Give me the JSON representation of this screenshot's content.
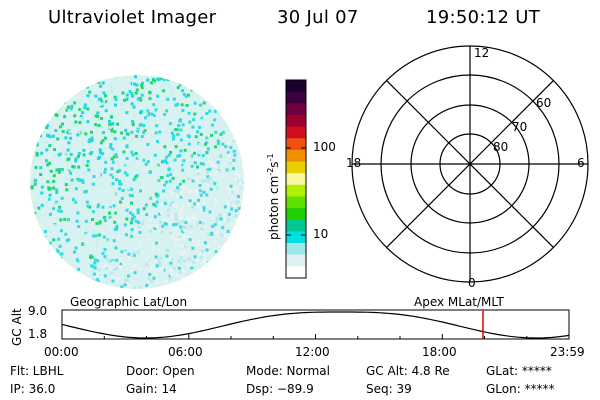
{
  "header": {
    "title": "Ultraviolet Imager",
    "date": "30 Jul 07",
    "time": "19:50:12 UT"
  },
  "colorbar": {
    "label": "photon cm",
    "label_sup1": "-2",
    "label_s": "s",
    "label_sup2": "-1",
    "tick_100": "100",
    "tick_10": "10",
    "colors": [
      "#1a0030",
      "#3a0040",
      "#700040",
      "#a00030",
      "#d01020",
      "#f05010",
      "#f09000",
      "#e8d000",
      "#f8f8a0",
      "#b0f000",
      "#60e000",
      "#20d000",
      "#00c890",
      "#00e0e0",
      "#a0e8e8",
      "#e0f0f0",
      "#ffffff"
    ]
  },
  "polar": {
    "labels": {
      "top": "12",
      "bottom": "0",
      "left": "18",
      "right": "6",
      "lat60": "60",
      "lat70": "70",
      "lat80": "80"
    }
  },
  "plot": {
    "left_label": "Geographic Lat/Lon",
    "right_label": "Apex MLat/MLT",
    "y_axis_label": "GC Alt",
    "y_top": "9.0",
    "y_bottom": "1.8",
    "x_ticks": [
      "00:00",
      "06:00",
      "12:00",
      "18:00",
      "23:59"
    ],
    "marker_color": "#e00000"
  },
  "footer": {
    "flt": "Flt: LBHL",
    "door": "Door: Open",
    "mode": "Mode: Normal",
    "gc_alt": "GC Alt: 4.8 Re",
    "glat": "GLat: *****",
    "ip": "IP: 36.0",
    "gain": "Gain: 14",
    "dsp": "Dsp: −89.9",
    "seq": "Seq: 39",
    "glon": "GLon: *****"
  }
}
